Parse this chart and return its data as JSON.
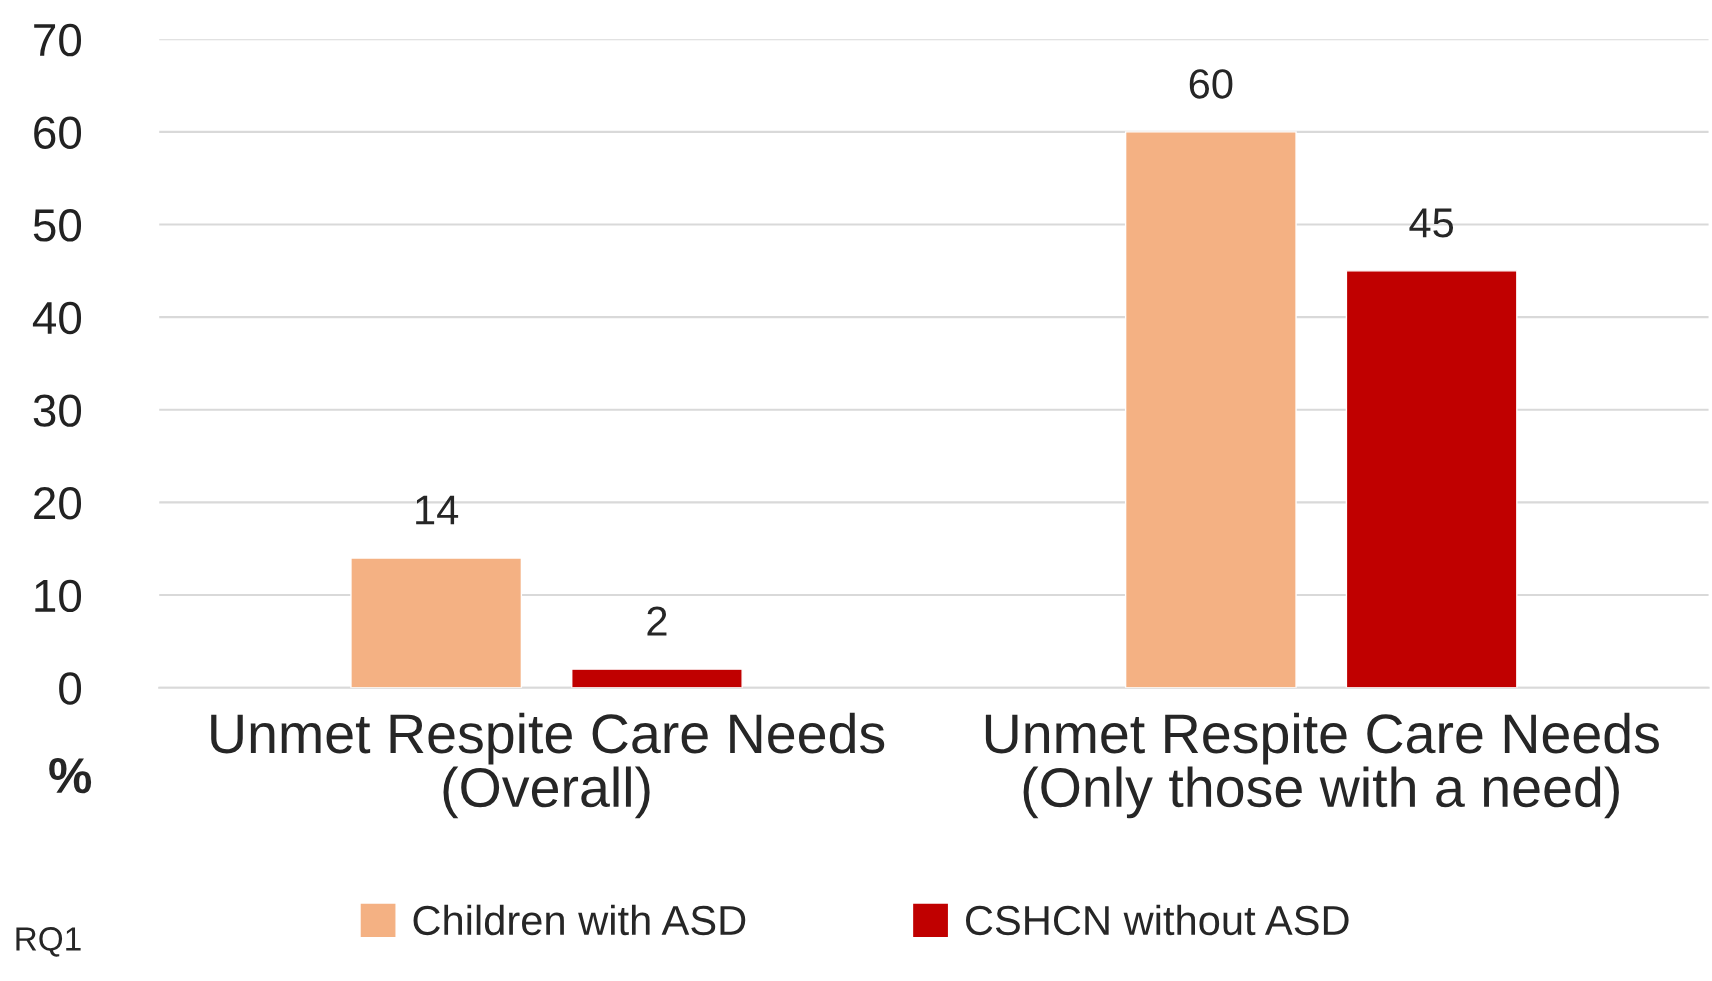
{
  "chart_data": {
    "type": "bar",
    "categories": [
      "Unmet Respite Care Needs (Overall)",
      "Unmet Respite Care Needs (Only those with a need)"
    ],
    "series": [
      {
        "name": "Children with ASD",
        "color": "#f4b183",
        "values": [
          14,
          60
        ]
      },
      {
        "name": "CSHCN without ASD",
        "color": "#c00000",
        "values": [
          2,
          45
        ]
      }
    ],
    "ylabel": "%",
    "ylim": [
      0,
      70
    ],
    "yticks": [
      0,
      10,
      20,
      30,
      40,
      50,
      60,
      70
    ],
    "grid": "y",
    "data_labels": true,
    "legend": "bottom",
    "annotations": [
      "RQ1"
    ]
  }
}
